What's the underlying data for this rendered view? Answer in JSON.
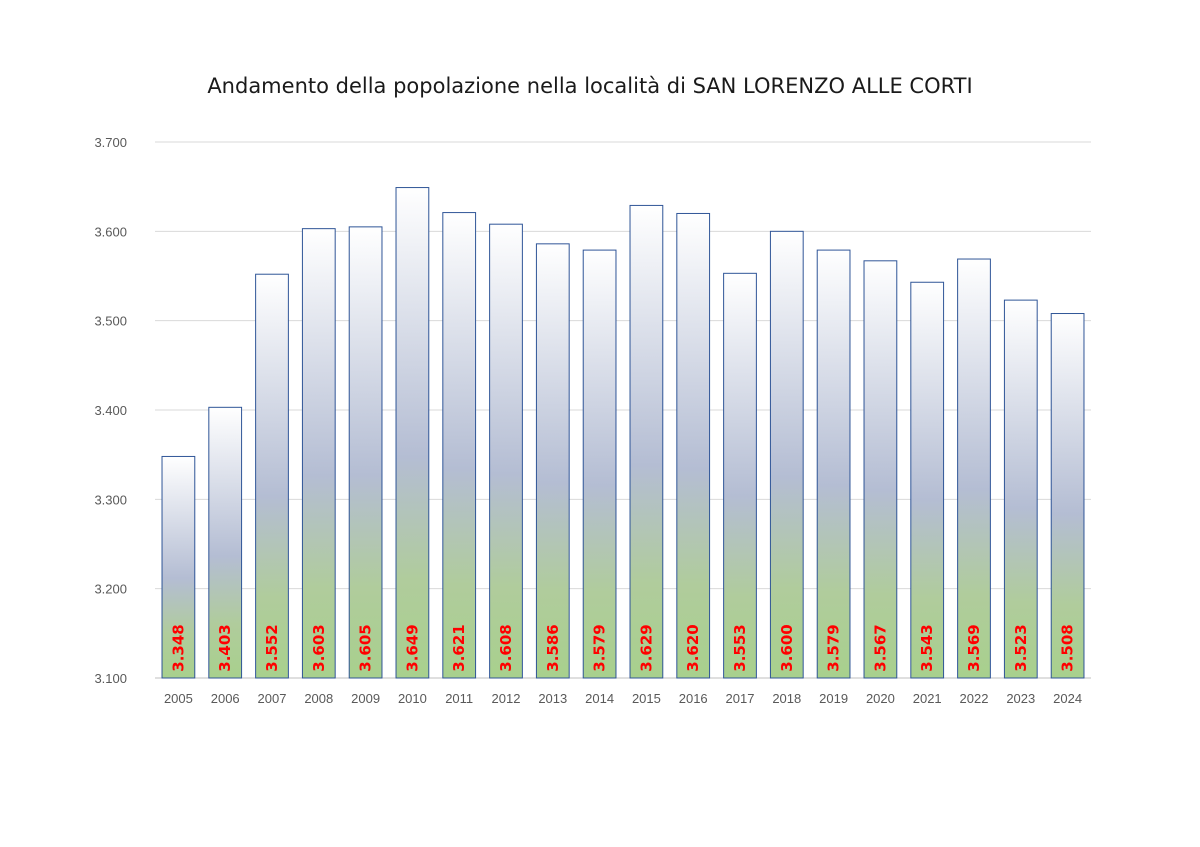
{
  "chart_data": {
    "type": "bar",
    "title": "Andamento della popolazione nella località di SAN LORENZO ALLE CORTI",
    "xlabel": "",
    "ylabel": "",
    "categories": [
      "2005",
      "2006",
      "2007",
      "2008",
      "2009",
      "2010",
      "2011",
      "2012",
      "2013",
      "2014",
      "2015",
      "2016",
      "2017",
      "2018",
      "2019",
      "2020",
      "2021",
      "2022",
      "2023",
      "2024"
    ],
    "values": [
      3348,
      3403,
      3552,
      3603,
      3605,
      3649,
      3621,
      3608,
      3586,
      3579,
      3629,
      3620,
      3553,
      3600,
      3579,
      3567,
      3543,
      3569,
      3523,
      3508
    ],
    "value_labels": [
      "3.348",
      "3.403",
      "3.552",
      "3.603",
      "3.605",
      "3.649",
      "3.621",
      "3.608",
      "3.586",
      "3.579",
      "3.629",
      "3.620",
      "3.553",
      "3.600",
      "3.579",
      "3.567",
      "3.543",
      "3.569",
      "3.523",
      "3.508"
    ],
    "ylim": [
      3100,
      3700
    ],
    "yticks": [
      3100,
      3200,
      3300,
      3400,
      3500,
      3600,
      3700
    ],
    "ytick_labels": [
      "3.100",
      "3.200",
      "3.300",
      "3.400",
      "3.500",
      "3.600",
      "3.700"
    ],
    "grid": true,
    "legend": "none",
    "colors": {
      "bar_top": "#ffffff",
      "bar_mid": "#b4bdd3",
      "bar_bottom": "#a8d08d",
      "bar_border": "#2f5597",
      "data_label": "#ff0000",
      "grid": "#d9d9d9",
      "tick_text": "#595959"
    }
  }
}
